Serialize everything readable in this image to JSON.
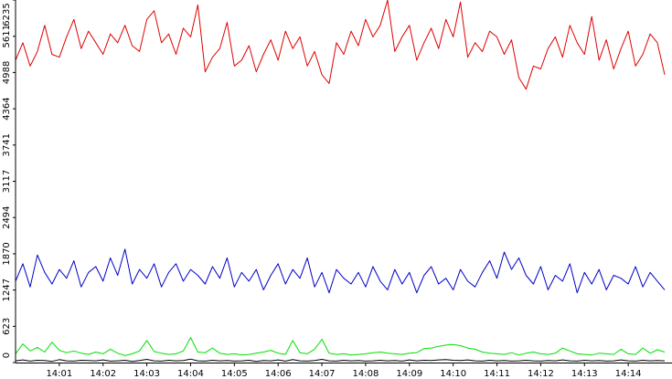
{
  "chart_data": {
    "type": "line",
    "categories": [
      null,
      null,
      null,
      null,
      null,
      null,
      "14:01",
      null,
      null,
      null,
      null,
      null,
      "14:02",
      null,
      null,
      null,
      null,
      null,
      "14:03",
      null,
      null,
      null,
      null,
      null,
      "14:04",
      null,
      null,
      null,
      null,
      null,
      "14:05",
      null,
      null,
      null,
      null,
      null,
      "14:06",
      null,
      null,
      null,
      null,
      null,
      "14:07",
      null,
      null,
      null,
      null,
      null,
      "14:08",
      null,
      null,
      null,
      null,
      null,
      "14:09",
      null,
      null,
      null,
      null,
      null,
      "14:10",
      null,
      null,
      null,
      null,
      null,
      "14:11",
      null,
      null,
      null,
      null,
      null,
      "14:12",
      null,
      null,
      null,
      null,
      null,
      "14:13",
      null,
      null,
      null,
      null,
      null,
      "14:14",
      null,
      null,
      null,
      null,
      null
    ],
    "ylim": [
      0,
      6235
    ],
    "yticks": [
      0,
      623,
      1247,
      1870,
      2494,
      3117,
      3741,
      4364,
      4988,
      5611,
      6235
    ],
    "series": [
      {
        "color": "#e00000",
        "values": [
          5200,
          5500,
          5100,
          5350,
          5800,
          5300,
          5250,
          5600,
          5900,
          5400,
          5700,
          5500,
          5300,
          5650,
          5500,
          5800,
          5450,
          5350,
          5900,
          6050,
          5500,
          5650,
          5300,
          5750,
          5600,
          6150,
          5000,
          5250,
          5400,
          5850,
          5100,
          5200,
          5450,
          5000,
          5300,
          5550,
          5200,
          5700,
          5400,
          5600,
          5100,
          5350,
          4950,
          4800,
          5500,
          5300,
          5700,
          5450,
          5900,
          5600,
          5800,
          6235,
          5350,
          5600,
          5800,
          5200,
          5500,
          5750,
          5400,
          5900,
          5600,
          6200,
          5250,
          5500,
          5350,
          5700,
          5600,
          5300,
          5550,
          4900,
          4700,
          5100,
          5050,
          5400,
          5600,
          5250,
          5800,
          5500,
          5300,
          5950,
          5200,
          5550,
          5050,
          5400,
          5700,
          5100,
          5300,
          5650,
          5500,
          4950
        ]
      },
      {
        "color": "#0000c8",
        "values": [
          1400,
          1700,
          1300,
          1850,
          1550,
          1350,
          1600,
          1450,
          1750,
          1300,
          1550,
          1650,
          1400,
          1800,
          1500,
          1950,
          1350,
          1600,
          1450,
          1700,
          1300,
          1550,
          1700,
          1400,
          1600,
          1500,
          1350,
          1650,
          1450,
          1800,
          1300,
          1550,
          1400,
          1600,
          1250,
          1500,
          1700,
          1350,
          1600,
          1450,
          1800,
          1300,
          1550,
          1200,
          1600,
          1450,
          1350,
          1550,
          1300,
          1650,
          1400,
          1250,
          1600,
          1350,
          1550,
          1200,
          1500,
          1650,
          1350,
          1450,
          1250,
          1600,
          1400,
          1300,
          1550,
          1750,
          1450,
          1900,
          1600,
          1800,
          1500,
          1350,
          1650,
          1250,
          1500,
          1400,
          1700,
          1200,
          1550,
          1350,
          1600,
          1250,
          1500,
          1450,
          1350,
          1650,
          1300,
          1550,
          1400,
          1250
        ]
      },
      {
        "color": "#00e000",
        "values": [
          150,
          320,
          200,
          260,
          180,
          350,
          210,
          170,
          200,
          160,
          140,
          180,
          150,
          230,
          160,
          120,
          150,
          200,
          380,
          190,
          160,
          140,
          150,
          200,
          430,
          180,
          170,
          250,
          160,
          140,
          150,
          130,
          140,
          160,
          180,
          210,
          160,
          140,
          380,
          170,
          150,
          230,
          400,
          160,
          140,
          150,
          130,
          140,
          150,
          170,
          180,
          160,
          150,
          140,
          160,
          170,
          240,
          250,
          280,
          300,
          310,
          290,
          250,
          230,
          180,
          160,
          150,
          140,
          170,
          130,
          160,
          180,
          150,
          140,
          160,
          250,
          200,
          150,
          140,
          130,
          160,
          150,
          140,
          230,
          150,
          140,
          250,
          160,
          220,
          180
        ]
      },
      {
        "color": "#000000",
        "values": [
          30,
          45,
          25,
          40,
          35,
          20,
          50,
          30,
          25,
          40,
          35,
          30,
          45,
          25,
          30,
          40,
          20,
          35,
          55,
          30,
          25,
          40,
          30,
          35,
          60,
          30,
          25,
          40,
          30,
          35,
          25,
          30,
          40,
          20,
          35,
          30,
          45,
          25,
          50,
          30,
          25,
          35,
          55,
          30,
          25,
          40,
          30,
          35,
          25,
          30,
          40,
          30,
          35,
          25,
          45,
          30,
          40,
          35,
          45,
          50,
          40,
          35,
          45,
          30,
          25,
          40,
          30,
          35,
          25,
          30,
          40,
          30,
          25,
          35,
          30,
          45,
          30,
          25,
          40,
          30,
          35,
          25,
          30,
          45,
          30,
          25,
          40,
          30,
          35,
          30
        ]
      }
    ]
  }
}
